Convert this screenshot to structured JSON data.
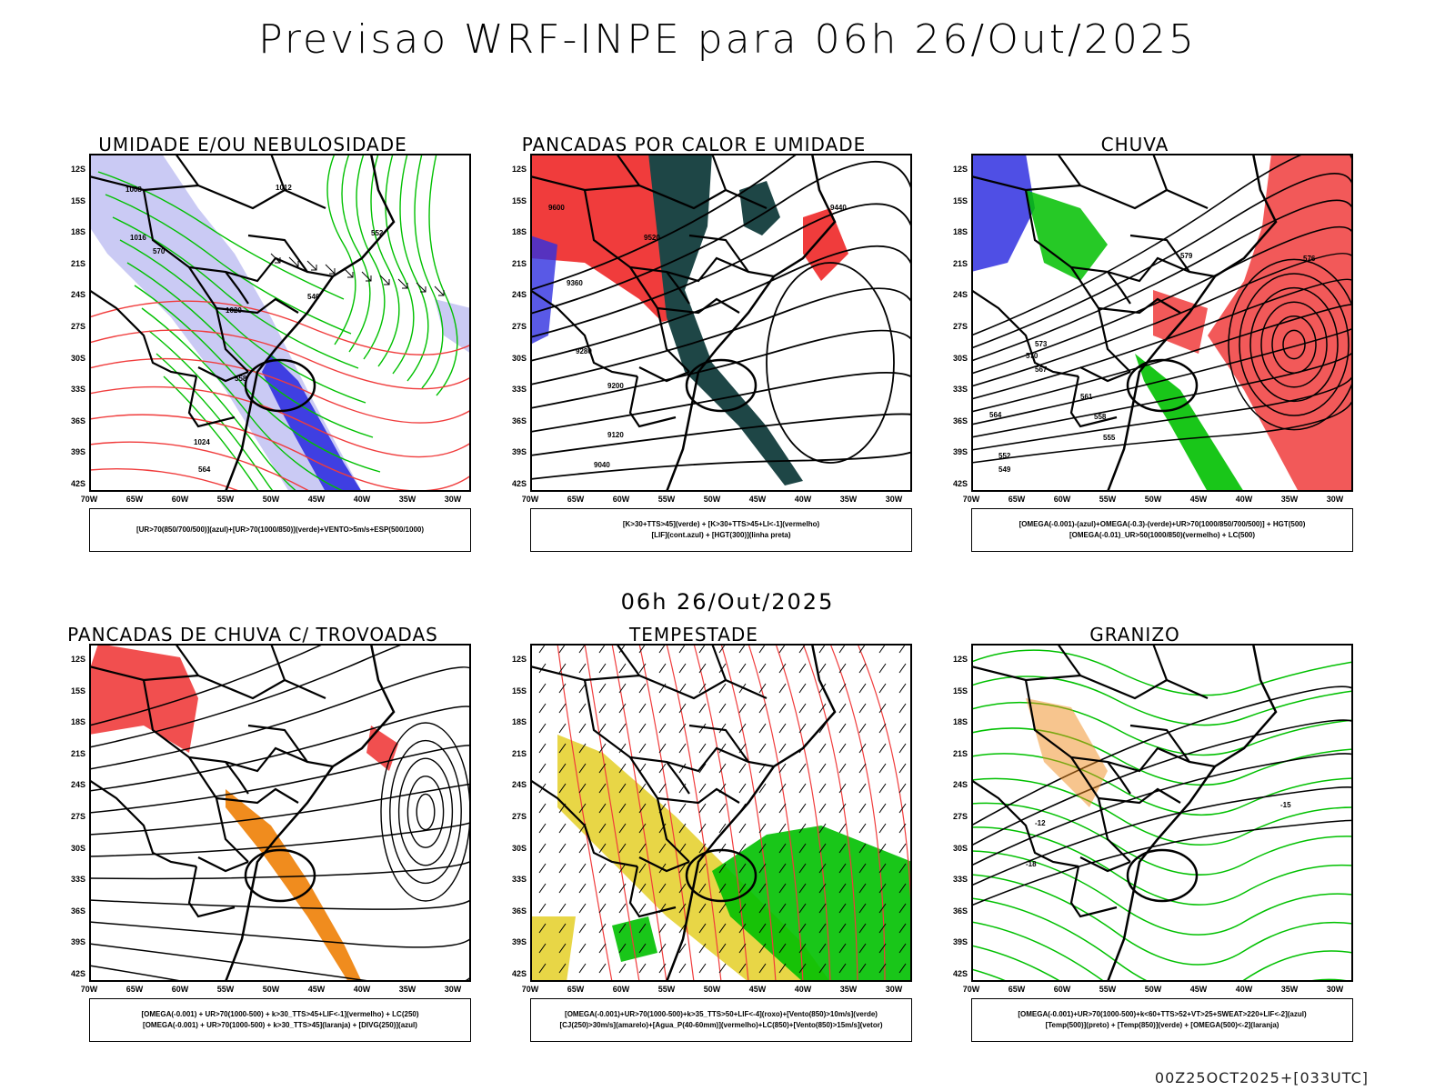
{
  "header": {
    "title": "Previsao WRF-INPE  para 06h 26/Out/2025"
  },
  "middle": {
    "date": "06h 26/Out/2025"
  },
  "footer": {
    "stamp": "00Z25OCT2025+[033UTC]"
  },
  "axes": {
    "lat_ticks": [
      "12S",
      "15S",
      "18S",
      "21S",
      "24S",
      "27S",
      "30S",
      "33S",
      "36S",
      "39S",
      "42S"
    ],
    "lon_ticks": [
      "70W",
      "65W",
      "60W",
      "55W",
      "50W",
      "45W",
      "40W",
      "35W",
      "30W"
    ]
  },
  "colors": {
    "red": "#f03c3c",
    "green": "#00c000",
    "blue": "#3030e0",
    "lightblue": "#b4b4f0",
    "darkteal": "#1e4646",
    "orange": "#f08c1e",
    "yellow": "#e6d232"
  },
  "panels": [
    {
      "title": "UMIDADE E/OU NEBULOSIDADE",
      "legend": [
        "[UR>70(850/700/500)](azul)+[UR>70(1000/850)](verde)+VENTO>5m/s+ESP(500/1000)"
      ],
      "contour_labels": [
        "1008",
        "1012",
        "1016",
        "1020",
        "1024",
        "546",
        "552",
        "558",
        "564",
        "570"
      ]
    },
    {
      "title": "PANCADAS POR CALOR E UMIDADE",
      "legend": [
        "[K>30+TTS>45](verde) + [K>30+TTS>45+LI<-1](vermelho)",
        "[LIF](cont.azul) + [HGT(300)](linha preta)"
      ],
      "contour_labels": [
        "9600",
        "9520",
        "9440",
        "9360",
        "9280",
        "9200",
        "9120",
        "9040"
      ]
    },
    {
      "title": "CHUVA",
      "legend": [
        "[OMEGA(-0.001)-(azul)+OMEGA(-0.3)-(verde)+UR>70(1000/850/700/500)] + HGT(500)",
        "[OMEGA(-0.01)_UR>50(1000/850)(vermelho) + LC(500)"
      ],
      "contour_labels": [
        "579",
        "576",
        "573",
        "570",
        "567",
        "564",
        "561",
        "558",
        "555",
        "552",
        "549"
      ]
    },
    {
      "title": "PANCADAS DE CHUVA C/ TROVOADAS",
      "legend": [
        "[OMEGA(-0.001) + UR>70(1000-500) + k>30_TTS>45+LIF<-1](vermelho) + LC(250)",
        "[OMEGA(-0.001) + UR>70(1000-500) + k>30_TTS>45](laranja) + [DIVG(250)](azul)"
      ],
      "contour_labels": []
    },
    {
      "title": "TEMPESTADE",
      "legend": [
        "[OMEGA(-0.001)+UR>70(1000-500)+k>35_TTS>50+LIF<-4](roxo)+[Vento(850)>10m/s](verde)",
        "[CJ(250)>30m/s](amarelo)+[Agua_P(40-60mm)](vermelho)+LC(850)+[Vento(850)>15m/s](vetor)"
      ],
      "contour_labels": []
    },
    {
      "title": "GRANIZO",
      "legend": [
        "[OMEGA(-0.001)+UR>70(1000-500)+k<60+TTS>52+VT>25+SWEAT>220+LIF<-2](azul)",
        "[Temp(500)](preto) + [Temp(850)](verde) + [OMEGA(500)<-2](laranja)"
      ],
      "contour_labels": [
        "-12",
        "-15",
        "-18"
      ]
    }
  ]
}
